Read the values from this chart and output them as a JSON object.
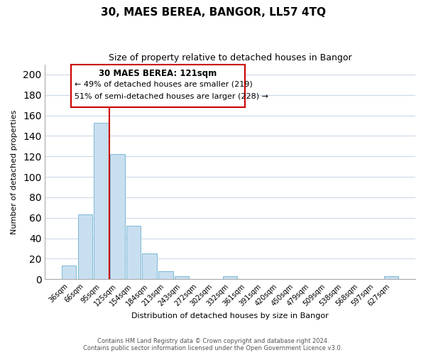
{
  "title": "30, MAES BEREA, BANGOR, LL57 4TQ",
  "subtitle": "Size of property relative to detached houses in Bangor",
  "xlabel": "Distribution of detached houses by size in Bangor",
  "ylabel": "Number of detached properties",
  "footer_line1": "Contains HM Land Registry data © Crown copyright and database right 2024.",
  "footer_line2": "Contains public sector information licensed under the Open Government Licence v3.0.",
  "bar_labels": [
    "36sqm",
    "66sqm",
    "95sqm",
    "125sqm",
    "154sqm",
    "184sqm",
    "213sqm",
    "243sqm",
    "272sqm",
    "302sqm",
    "332sqm",
    "361sqm",
    "391sqm",
    "420sqm",
    "450sqm",
    "479sqm",
    "509sqm",
    "538sqm",
    "568sqm",
    "597sqm",
    "627sqm"
  ],
  "bar_values": [
    13,
    63,
    153,
    122,
    52,
    25,
    8,
    3,
    0,
    0,
    3,
    0,
    0,
    0,
    0,
    0,
    0,
    0,
    0,
    0,
    3
  ],
  "bar_color": "#c8dff0",
  "bar_edge_color": "#7ab8d4",
  "vline_color": "#cc0000",
  "vline_bar_index": 3,
  "ylim": [
    0,
    210
  ],
  "yticks": [
    0,
    20,
    40,
    60,
    80,
    100,
    120,
    140,
    160,
    180,
    200
  ],
  "annotation_title": "30 MAES BEREA: 121sqm",
  "annotation_line1": "← 49% of detached houses are smaller (219)",
  "annotation_line2": "51% of semi-detached houses are larger (228) →",
  "title_fontsize": 11,
  "subtitle_fontsize": 9,
  "xlabel_fontsize": 8,
  "ylabel_fontsize": 8,
  "tick_fontsize": 7,
  "footer_fontsize": 6
}
